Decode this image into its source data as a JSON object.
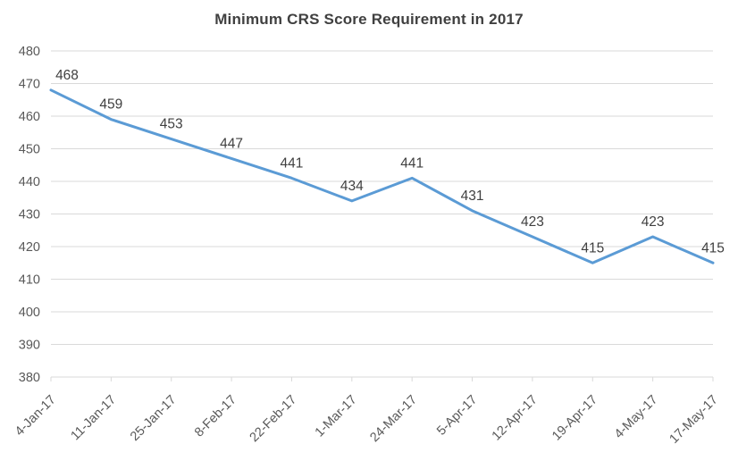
{
  "chart_data": {
    "type": "line",
    "title": "Minimum CRS Score Requirement in 2017",
    "categories": [
      "4-Jan-17",
      "11-Jan-17",
      "25-Jan-17",
      "8-Feb-17",
      "22-Feb-17",
      "1-Mar-17",
      "24-Mar-17",
      "5-Apr-17",
      "12-Apr-17",
      "19-Apr-17",
      "4-May-17",
      "17-May-17"
    ],
    "values": [
      468,
      459,
      453,
      447,
      441,
      434,
      441,
      431,
      423,
      415,
      423,
      415
    ],
    "data_labels": [
      468,
      459,
      453,
      447,
      441,
      434,
      441,
      431,
      423,
      415,
      423,
      415
    ],
    "xlabel": "",
    "ylabel": "",
    "ylim": [
      380,
      480
    ],
    "ytick_step": 10,
    "ytick_labels": [
      "380",
      "390",
      "400",
      "410",
      "420",
      "430",
      "440",
      "450",
      "460",
      "470",
      "480"
    ],
    "grid": "horizontal",
    "legend_position": "none",
    "data_label_position": "above"
  },
  "colors": {
    "line": "#5B9BD5",
    "gridline": "#D9D9D9",
    "axis_tick": "#D9D9D9",
    "title_text": "#404040",
    "data_label_text": "#404040",
    "axis_label_text": "#595959",
    "background": "#FFFFFF"
  }
}
